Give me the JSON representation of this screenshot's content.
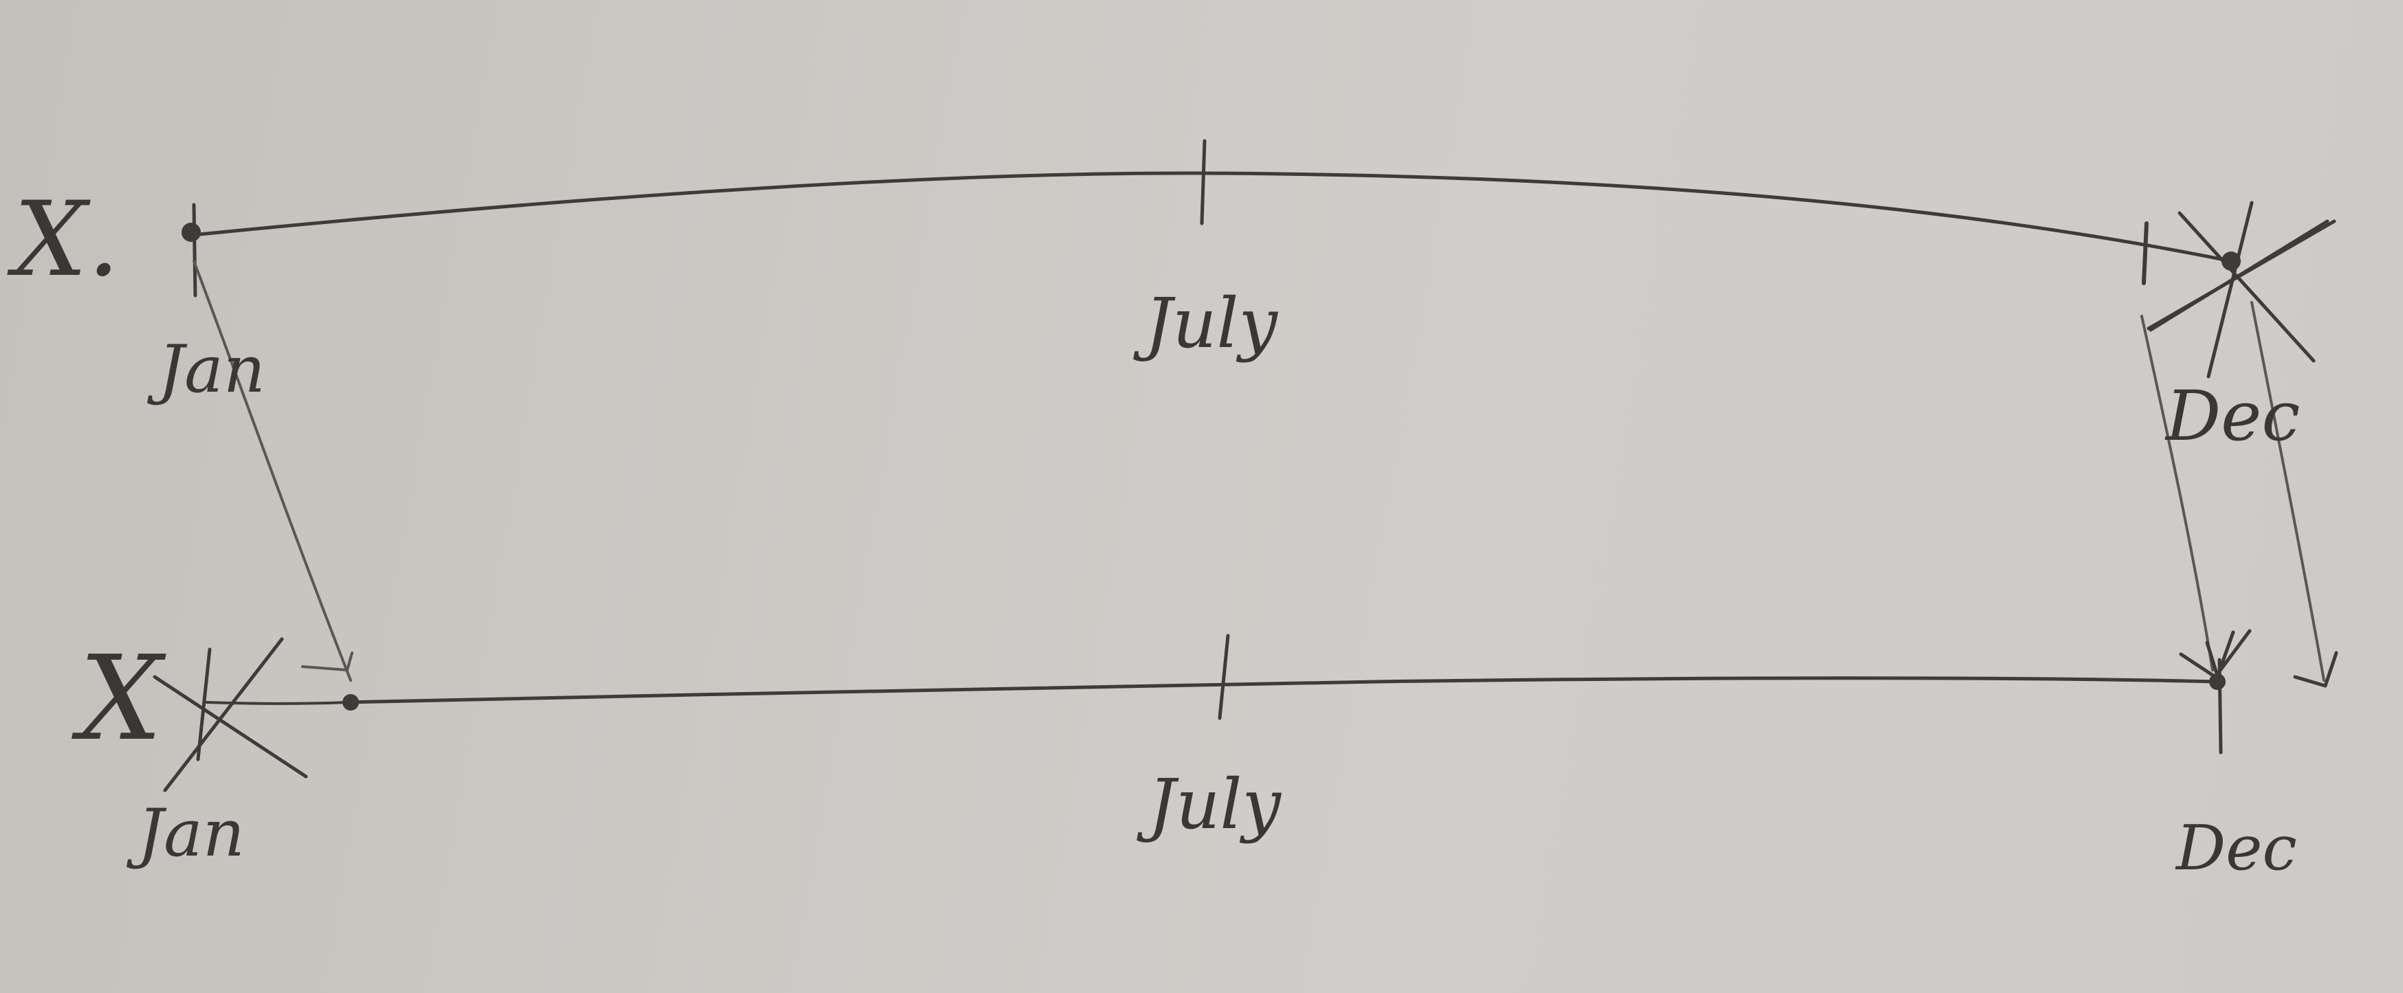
{
  "timelines": [
    {
      "variable": "X.",
      "ticks": [
        "Jan",
        "July",
        "Dec"
      ]
    },
    {
      "variable": "X",
      "ticks": [
        "Jan",
        "July",
        "Dec"
      ]
    }
  ],
  "colors": {
    "paper": "#cbc8c4",
    "pencil": "#3e3c3a"
  }
}
